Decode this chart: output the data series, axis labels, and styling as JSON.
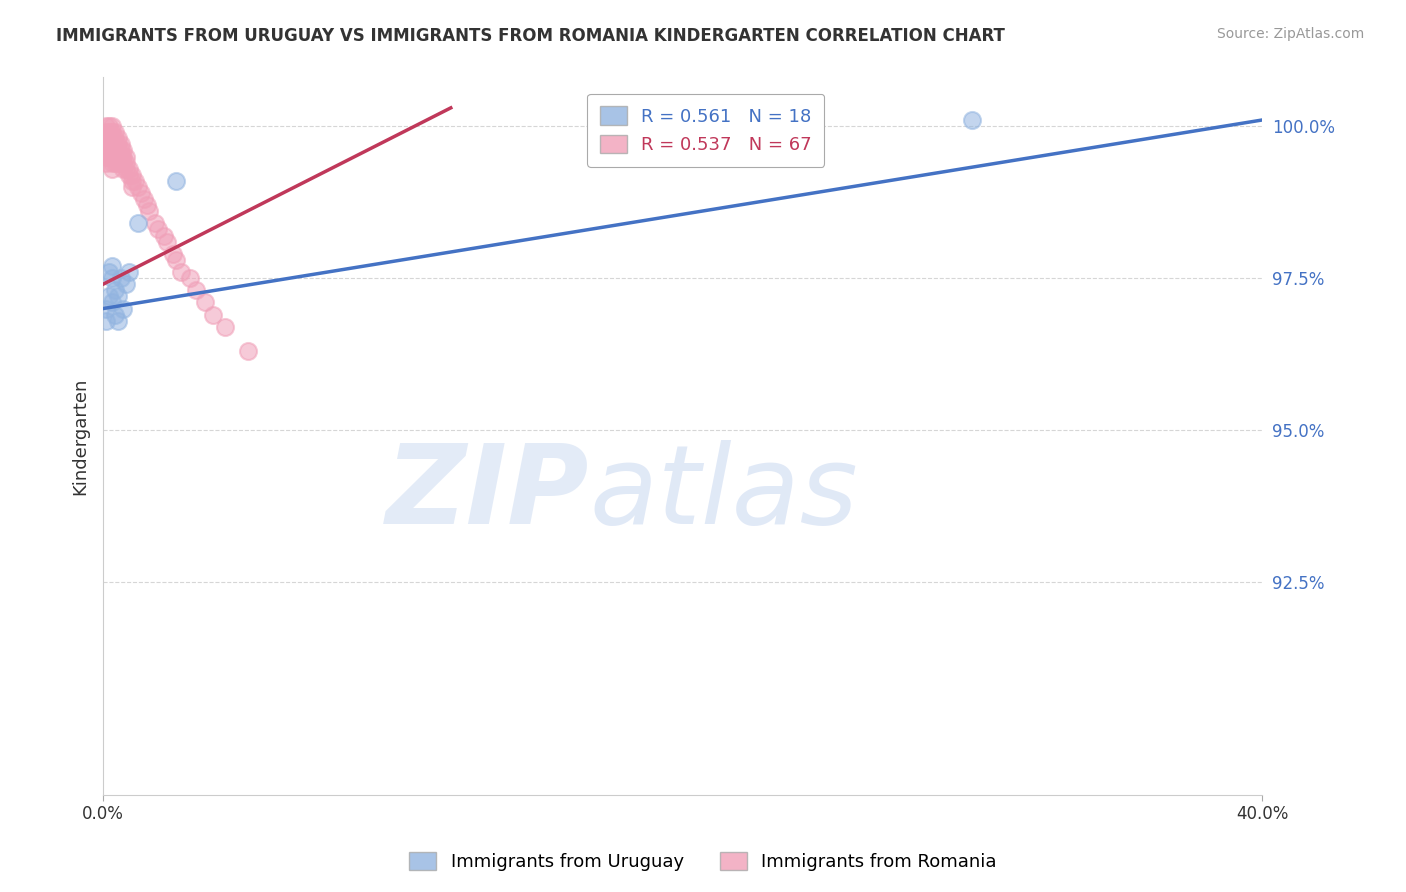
{
  "title": "IMMIGRANTS FROM URUGUAY VS IMMIGRANTS FROM ROMANIA KINDERGARTEN CORRELATION CHART",
  "source": "Source: ZipAtlas.com",
  "ylabel": "Kindergarten",
  "legend_label1": "Immigrants from Uruguay",
  "legend_label2": "Immigrants from Romania",
  "R_uruguay": 0.561,
  "N_uruguay": 18,
  "R_romania": 0.537,
  "N_romania": 67,
  "color_uruguay": "#92b4e0",
  "color_romania": "#f0a0b8",
  "color_trendline_uruguay": "#4472c4",
  "color_trendline_romania": "#c0385a",
  "xmin": 0.0,
  "xmax": 0.4,
  "ymin": 0.89,
  "ymax": 1.008,
  "yticks": [
    0.925,
    0.95,
    0.975,
    1.0
  ],
  "ytick_labels": [
    "92.5%",
    "95.0%",
    "97.5%",
    "100.0%"
  ],
  "xticks": [
    0.0,
    0.4
  ],
  "xtick_labels": [
    "0.0%",
    "40.0%"
  ],
  "uruguay_x": [
    0.001,
    0.001,
    0.002,
    0.002,
    0.003,
    0.003,
    0.003,
    0.004,
    0.004,
    0.005,
    0.005,
    0.006,
    0.007,
    0.008,
    0.009,
    0.012,
    0.025,
    0.3
  ],
  "uruguay_y": [
    0.97,
    0.968,
    0.972,
    0.976,
    0.971,
    0.975,
    0.977,
    0.969,
    0.973,
    0.968,
    0.972,
    0.975,
    0.97,
    0.974,
    0.976,
    0.984,
    0.991,
    1.001
  ],
  "romania_x": [
    0.001,
    0.001,
    0.001,
    0.001,
    0.001,
    0.001,
    0.001,
    0.002,
    0.002,
    0.002,
    0.002,
    0.002,
    0.002,
    0.003,
    0.003,
    0.003,
    0.003,
    0.003,
    0.003,
    0.003,
    0.003,
    0.004,
    0.004,
    0.004,
    0.004,
    0.004,
    0.004,
    0.005,
    0.005,
    0.005,
    0.005,
    0.005,
    0.006,
    0.006,
    0.006,
    0.006,
    0.007,
    0.007,
    0.007,
    0.007,
    0.008,
    0.008,
    0.008,
    0.009,
    0.009,
    0.01,
    0.01,
    0.01,
    0.011,
    0.012,
    0.013,
    0.014,
    0.015,
    0.016,
    0.018,
    0.019,
    0.021,
    0.022,
    0.024,
    0.025,
    0.027,
    0.03,
    0.032,
    0.035,
    0.038,
    0.042,
    0.05
  ],
  "romania_y": [
    0.999,
    0.998,
    0.997,
    0.996,
    0.995,
    0.994,
    1.0,
    0.999,
    0.998,
    0.997,
    0.996,
    0.995,
    1.0,
    0.999,
    0.998,
    0.997,
    0.996,
    0.995,
    0.994,
    0.993,
    1.0,
    0.999,
    0.998,
    0.997,
    0.996,
    0.995,
    0.994,
    0.998,
    0.997,
    0.996,
    0.995,
    0.994,
    0.997,
    0.996,
    0.995,
    0.994,
    0.996,
    0.995,
    0.994,
    0.993,
    0.995,
    0.994,
    0.993,
    0.993,
    0.992,
    0.991,
    0.99,
    0.992,
    0.991,
    0.99,
    0.989,
    0.988,
    0.987,
    0.986,
    0.984,
    0.983,
    0.982,
    0.981,
    0.979,
    0.978,
    0.976,
    0.975,
    0.973,
    0.971,
    0.969,
    0.967,
    0.963
  ],
  "trendline_uru_x0": 0.0,
  "trendline_uru_y0": 0.97,
  "trendline_uru_x1": 0.4,
  "trendline_uru_y1": 1.001,
  "trendline_rom_x0": 0.0,
  "trendline_rom_y0": 0.974,
  "trendline_rom_x1": 0.12,
  "trendline_rom_y1": 1.003
}
